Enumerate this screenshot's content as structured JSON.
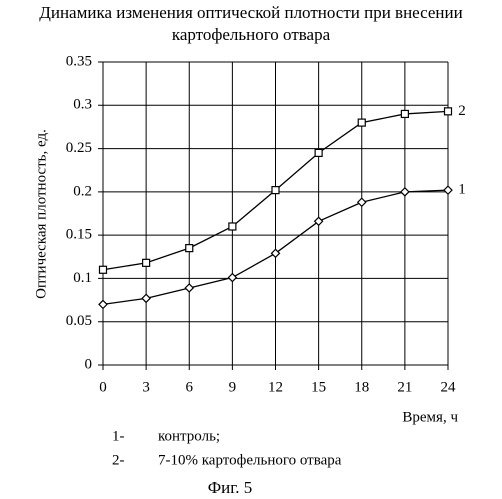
{
  "chart_data": {
    "type": "line",
    "title": [
      "Динамика изменения оптической плотности при внесении",
      "картофельного отвара"
    ],
    "y_label": "Оптическая плотность, ед.",
    "x_label": "Время, ч",
    "x": [
      0,
      3,
      6,
      9,
      12,
      15,
      18,
      21,
      24
    ],
    "xlim": [
      0,
      24
    ],
    "xticks": [
      0,
      3,
      6,
      9,
      12,
      15,
      18,
      21,
      24
    ],
    "ylim": [
      0,
      0.35
    ],
    "yticks": [
      0,
      0.05,
      0.1,
      0.15,
      0.2,
      0.25,
      0.3,
      0.35
    ],
    "grid": true,
    "series": [
      {
        "name": "1",
        "marker": "diamond",
        "color": "#000000",
        "values": [
          0.07,
          0.077,
          0.089,
          0.101,
          0.129,
          0.166,
          0.188,
          0.2,
          0.202
        ]
      },
      {
        "name": "2",
        "marker": "square",
        "color": "#000000",
        "values": [
          0.11,
          0.118,
          0.135,
          0.16,
          0.202,
          0.245,
          0.28,
          0.29,
          0.293
        ]
      }
    ],
    "legend": [
      {
        "key": "1-",
        "text": "контроль;"
      },
      {
        "key": "2-",
        "text": "7-10% картофельного отвара"
      }
    ],
    "caption": "Фиг. 5"
  }
}
